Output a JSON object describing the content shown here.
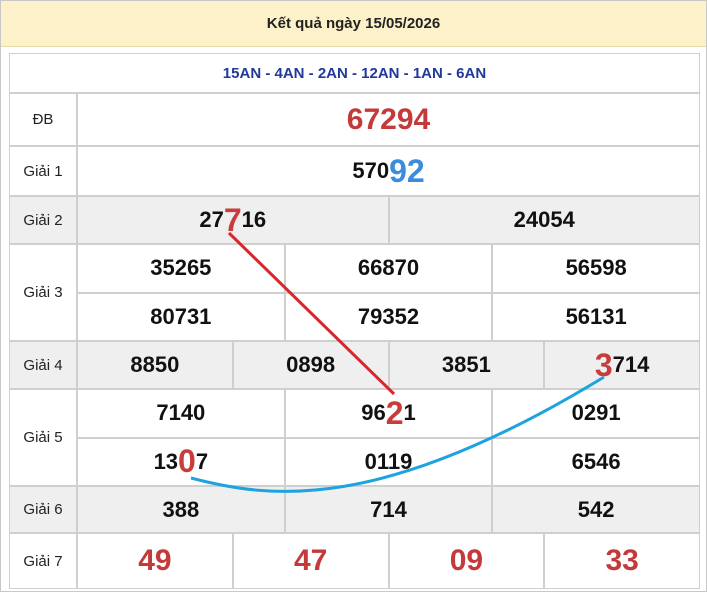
{
  "header": {
    "title": "Kết quả ngày 15/05/2026"
  },
  "table": {
    "codes": "15AN - 4AN - 2AN - 12AN - 1AN - 6AN",
    "rows": [
      {
        "label": "ĐB",
        "lines": [
          [
            "67294"
          ]
        ]
      },
      {
        "label": "Giải 1",
        "lines": [
          [
            {
              "before": "570",
              "mark": "92"
            }
          ]
        ]
      },
      {
        "label": "Giải 2",
        "lines": [
          [
            {
              "before": "27",
              "mark": "7",
              "after": "16"
            },
            "24054"
          ]
        ]
      },
      {
        "label": "Giải 3",
        "lines": [
          [
            "35265",
            "66870",
            "56598"
          ],
          [
            "80731",
            "79352",
            "56131"
          ]
        ]
      },
      {
        "label": "Giải 4",
        "lines": [
          [
            "8850",
            "0898",
            "3851",
            {
              "mark": "3",
              "after": "714"
            }
          ]
        ]
      },
      {
        "label": "Giải 5",
        "lines": [
          [
            "7140",
            {
              "before": "96",
              "mark": "2",
              "after": "1"
            },
            "0291"
          ],
          [
            {
              "before": "13",
              "mark": "0",
              "after": "7"
            },
            "0119",
            "6546"
          ]
        ]
      },
      {
        "label": "Giải 6",
        "lines": [
          [
            "388",
            "714",
            "542"
          ]
        ]
      },
      {
        "label": "Giải 7",
        "lines": [
          [
            "49",
            "47",
            "09",
            "33"
          ]
        ]
      }
    ]
  }
}
